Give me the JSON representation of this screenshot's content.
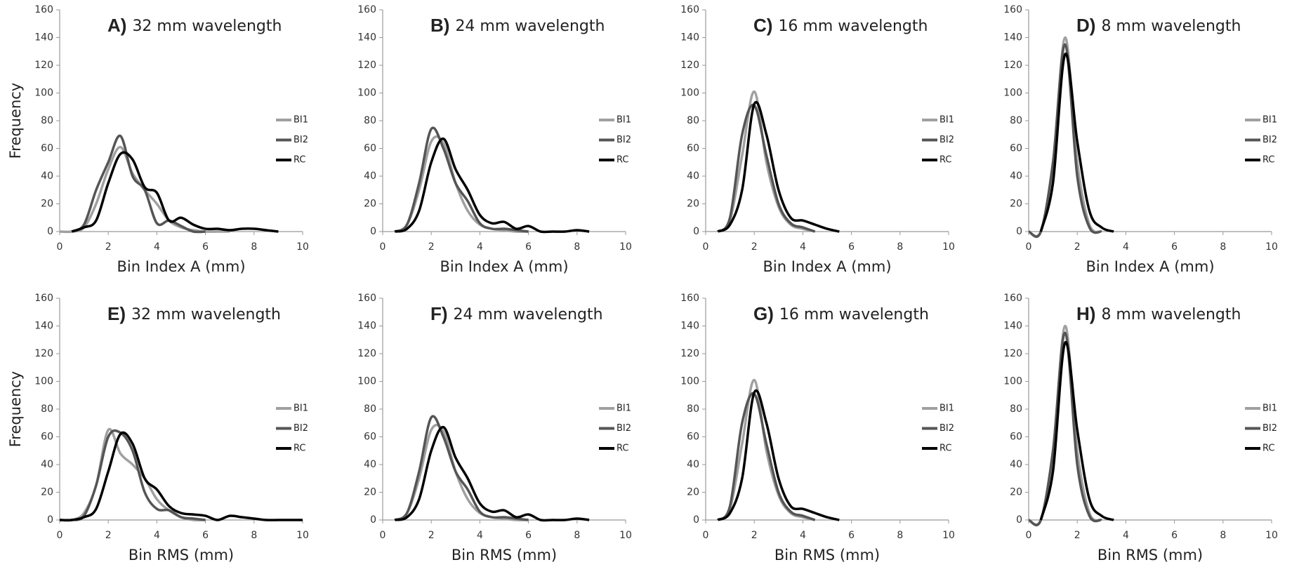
{
  "chart_data": [
    {
      "type": "line",
      "panel_label": "A)",
      "title": "32 mm wavelength",
      "y_label": "Frequency",
      "x_label": "Bin Index A (mm)",
      "x": [
        0,
        0.5,
        1,
        1.5,
        2,
        2.5,
        3,
        3.5,
        4,
        4.5,
        5,
        5.5,
        6,
        6.5,
        7,
        7.5,
        8,
        8.5,
        9,
        9.5,
        10
      ],
      "series": [
        {
          "name": "BI1",
          "color": "#a0a0a0",
          "values": [
            0,
            0,
            3,
            20,
            45,
            61,
            42,
            30,
            20,
            8,
            3,
            1,
            0,
            0,
            0,
            null,
            null,
            null,
            null,
            null,
            null
          ]
        },
        {
          "name": "BI2",
          "color": "#555555",
          "values": [
            null,
            0,
            5,
            30,
            50,
            69,
            40,
            30,
            6,
            8,
            4,
            0,
            0,
            null,
            null,
            null,
            null,
            null,
            null,
            null,
            null
          ]
        },
        {
          "name": "RC",
          "color": "#000000",
          "values": [
            null,
            0,
            3,
            8,
            35,
            56,
            52,
            32,
            28,
            8,
            10,
            5,
            2,
            2,
            1,
            2,
            2,
            1,
            0,
            null,
            null
          ]
        }
      ],
      "xlim": [
        0,
        10
      ],
      "ylim": [
        0,
        160
      ],
      "xticks": [
        0,
        2,
        4,
        6,
        8,
        10
      ],
      "yticks": [
        0,
        20,
        40,
        60,
        80,
        100,
        120,
        140,
        160
      ],
      "legend": "right"
    },
    {
      "type": "line",
      "panel_label": "B)",
      "title": "24 mm wavelength",
      "x_label": "Bin Index A (mm)",
      "x": [
        0,
        0.5,
        1,
        1.5,
        2,
        2.5,
        3,
        3.5,
        4,
        4.5,
        5,
        5.5,
        6,
        6.5,
        7,
        7.5,
        8,
        8.5,
        9,
        9.5,
        10
      ],
      "series": [
        {
          "name": "BI1",
          "color": "#a0a0a0",
          "values": [
            null,
            0,
            5,
            30,
            65,
            64,
            35,
            15,
            5,
            2,
            1,
            0,
            0,
            null,
            null,
            null,
            null,
            null,
            null,
            null,
            null
          ]
        },
        {
          "name": "BI2",
          "color": "#555555",
          "values": [
            null,
            0,
            5,
            35,
            74,
            60,
            35,
            22,
            6,
            2,
            2,
            1,
            0,
            null,
            null,
            null,
            null,
            null,
            null,
            null,
            null
          ]
        },
        {
          "name": "RC",
          "color": "#000000",
          "values": [
            null,
            0,
            2,
            15,
            50,
            67,
            45,
            30,
            12,
            6,
            7,
            2,
            4,
            0,
            0,
            0,
            1,
            0,
            null,
            null,
            null
          ]
        }
      ],
      "xlim": [
        0,
        10
      ],
      "ylim": [
        0,
        160
      ],
      "xticks": [
        0,
        2,
        4,
        6,
        8,
        10
      ],
      "yticks": [
        0,
        20,
        40,
        60,
        80,
        100,
        120,
        140,
        160
      ],
      "legend": "right"
    },
    {
      "type": "line",
      "panel_label": "C)",
      "title": "16 mm wavelength",
      "x_label": "Bin Index A (mm)",
      "x": [
        0,
        0.5,
        1,
        1.5,
        2,
        2.5,
        3,
        3.5,
        4,
        4.5,
        5,
        5.5,
        6,
        6.5,
        7,
        7.5,
        8,
        8.5,
        9,
        9.5,
        10
      ],
      "series": [
        {
          "name": "BI1",
          "color": "#a0a0a0",
          "values": [
            null,
            0,
            8,
            55,
            101,
            50,
            18,
            5,
            2,
            0,
            null,
            null,
            null,
            null,
            null,
            null,
            null,
            null,
            null,
            null,
            null
          ]
        },
        {
          "name": "BI2",
          "color": "#555555",
          "values": [
            null,
            0,
            10,
            70,
            91,
            55,
            20,
            6,
            3,
            0,
            null,
            null,
            null,
            null,
            null,
            null,
            null,
            null,
            null,
            null,
            null
          ]
        },
        {
          "name": "RC",
          "color": "#000000",
          "values": [
            null,
            0,
            5,
            30,
            92,
            70,
            30,
            10,
            8,
            5,
            2,
            0,
            null,
            null,
            null,
            null,
            null,
            null,
            null,
            null,
            null
          ]
        }
      ],
      "xlim": [
        0,
        10
      ],
      "ylim": [
        0,
        160
      ],
      "xticks": [
        0,
        2,
        4,
        6,
        8,
        10
      ],
      "yticks": [
        0,
        20,
        40,
        60,
        80,
        100,
        120,
        140,
        160
      ],
      "legend": "right"
    },
    {
      "type": "line",
      "panel_label": "D)",
      "title": "8 mm wavelength",
      "x_label": "Bin Index A (mm)",
      "x": [
        0,
        0.5,
        1,
        1.5,
        2,
        2.5,
        3,
        3.5,
        4,
        4.5,
        5,
        5.5,
        6,
        6.5,
        7,
        7.5,
        8,
        8.5,
        9,
        9.5,
        10
      ],
      "series": [
        {
          "name": "BI1",
          "color": "#a0a0a0",
          "values": [
            0,
            0,
            45,
            140,
            50,
            5,
            0,
            null,
            null,
            null,
            null,
            null,
            null,
            null,
            null,
            null,
            null,
            null,
            null,
            null,
            null
          ]
        },
        {
          "name": "BI2",
          "color": "#555555",
          "values": [
            0,
            0,
            50,
            135,
            40,
            3,
            0,
            null,
            null,
            null,
            null,
            null,
            null,
            null,
            null,
            null,
            null,
            null,
            null,
            null,
            null
          ]
        },
        {
          "name": "RC",
          "color": "#000000",
          "values": [
            null,
            0,
            35,
            128,
            65,
            15,
            3,
            0,
            null,
            null,
            null,
            null,
            null,
            null,
            null,
            null,
            null,
            null,
            null,
            null,
            null
          ]
        }
      ],
      "xlim": [
        0,
        10
      ],
      "ylim": [
        0,
        160
      ],
      "xticks": [
        0,
        2,
        4,
        6,
        8,
        10
      ],
      "yticks": [
        0,
        20,
        40,
        60,
        80,
        100,
        120,
        140,
        160
      ],
      "legend": "right"
    },
    {
      "type": "line",
      "panel_label": "E)",
      "title": "32 mm wavelength",
      "y_label": "Frequency",
      "x_label": "Bin RMS (mm)",
      "x": [
        0,
        0.5,
        1,
        1.5,
        2,
        2.5,
        3,
        3.5,
        4,
        4.5,
        5,
        5.5,
        6,
        6.5,
        7,
        7.5,
        8,
        8.5,
        9,
        9.5,
        10
      ],
      "series": [
        {
          "name": "BI1",
          "color": "#a0a0a0",
          "values": [
            0,
            0,
            5,
            25,
            65,
            48,
            40,
            30,
            15,
            7,
            2,
            0,
            0,
            null,
            null,
            null,
            null,
            null,
            null,
            null,
            null
          ]
        },
        {
          "name": "BI2",
          "color": "#555555",
          "values": [
            0,
            0,
            3,
            25,
            60,
            63,
            50,
            20,
            8,
            7,
            2,
            1,
            0,
            null,
            null,
            null,
            null,
            null,
            null,
            null,
            null
          ]
        },
        {
          "name": "RC",
          "color": "#000000",
          "values": [
            0,
            0,
            2,
            8,
            35,
            62,
            55,
            30,
            22,
            10,
            5,
            4,
            3,
            0,
            3,
            2,
            1,
            0,
            0,
            0,
            0
          ]
        }
      ],
      "xlim": [
        0,
        10
      ],
      "ylim": [
        0,
        160
      ],
      "xticks": [
        0,
        2,
        4,
        6,
        8,
        10
      ],
      "yticks": [
        0,
        20,
        40,
        60,
        80,
        100,
        120,
        140,
        160
      ],
      "legend": "right"
    },
    {
      "type": "line",
      "panel_label": "F)",
      "title": "24 mm wavelength",
      "x_label": "Bin RMS (mm)",
      "x": [
        0,
        0.5,
        1,
        1.5,
        2,
        2.5,
        3,
        3.5,
        4,
        4.5,
        5,
        5.5,
        6,
        6.5,
        7,
        7.5,
        8,
        8.5,
        9,
        9.5,
        10
      ],
      "series": [
        {
          "name": "BI1",
          "color": "#a0a0a0",
          "values": [
            null,
            0,
            5,
            30,
            65,
            64,
            35,
            15,
            5,
            2,
            1,
            0,
            0,
            null,
            null,
            null,
            null,
            null,
            null,
            null,
            null
          ]
        },
        {
          "name": "BI2",
          "color": "#555555",
          "values": [
            null,
            0,
            5,
            35,
            74,
            60,
            35,
            22,
            6,
            2,
            2,
            1,
            0,
            null,
            null,
            null,
            null,
            null,
            null,
            null,
            null
          ]
        },
        {
          "name": "RC",
          "color": "#000000",
          "values": [
            null,
            0,
            2,
            15,
            50,
            67,
            45,
            30,
            12,
            6,
            7,
            2,
            4,
            0,
            0,
            0,
            1,
            0,
            null,
            null,
            null
          ]
        }
      ],
      "xlim": [
        0,
        10
      ],
      "ylim": [
        0,
        160
      ],
      "xticks": [
        0,
        2,
        4,
        6,
        8,
        10
      ],
      "yticks": [
        0,
        20,
        40,
        60,
        80,
        100,
        120,
        140,
        160
      ],
      "legend": "right"
    },
    {
      "type": "line",
      "panel_label": "G)",
      "title": "16 mm wavelength",
      "x_label": "Bin RMS (mm)",
      "x": [
        0,
        0.5,
        1,
        1.5,
        2,
        2.5,
        3,
        3.5,
        4,
        4.5,
        5,
        5.5,
        6,
        6.5,
        7,
        7.5,
        8,
        8.5,
        9,
        9.5,
        10
      ],
      "series": [
        {
          "name": "BI1",
          "color": "#a0a0a0",
          "values": [
            null,
            0,
            8,
            55,
            101,
            50,
            18,
            5,
            2,
            0,
            null,
            null,
            null,
            null,
            null,
            null,
            null,
            null,
            null,
            null,
            null
          ]
        },
        {
          "name": "BI2",
          "color": "#555555",
          "values": [
            null,
            0,
            10,
            70,
            91,
            55,
            20,
            6,
            3,
            0,
            null,
            null,
            null,
            null,
            null,
            null,
            null,
            null,
            null,
            null,
            null
          ]
        },
        {
          "name": "RC",
          "color": "#000000",
          "values": [
            null,
            0,
            5,
            30,
            92,
            70,
            30,
            10,
            8,
            5,
            2,
            0,
            null,
            null,
            null,
            null,
            null,
            null,
            null,
            null,
            null
          ]
        }
      ],
      "xlim": [
        0,
        10
      ],
      "ylim": [
        0,
        160
      ],
      "xticks": [
        0,
        2,
        4,
        6,
        8,
        10
      ],
      "yticks": [
        0,
        20,
        40,
        60,
        80,
        100,
        120,
        140,
        160
      ],
      "legend": "right"
    },
    {
      "type": "line",
      "panel_label": "H)",
      "title": "8 mm wavelength",
      "x_label": "Bin RMS (mm)",
      "x": [
        0,
        0.5,
        1,
        1.5,
        2,
        2.5,
        3,
        3.5,
        4,
        4.5,
        5,
        5.5,
        6,
        6.5,
        7,
        7.5,
        8,
        8.5,
        9,
        9.5,
        10
      ],
      "series": [
        {
          "name": "BI1",
          "color": "#a0a0a0",
          "values": [
            0,
            0,
            45,
            140,
            50,
            5,
            0,
            null,
            null,
            null,
            null,
            null,
            null,
            null,
            null,
            null,
            null,
            null,
            null,
            null,
            null
          ]
        },
        {
          "name": "BI2",
          "color": "#555555",
          "values": [
            0,
            0,
            50,
            135,
            40,
            3,
            0,
            null,
            null,
            null,
            null,
            null,
            null,
            null,
            null,
            null,
            null,
            null,
            null,
            null,
            null
          ]
        },
        {
          "name": "RC",
          "color": "#000000",
          "values": [
            null,
            0,
            35,
            128,
            65,
            15,
            3,
            0,
            null,
            null,
            null,
            null,
            null,
            null,
            null,
            null,
            null,
            null,
            null,
            null,
            null
          ]
        }
      ],
      "xlim": [
        0,
        10
      ],
      "ylim": [
        0,
        160
      ],
      "xticks": [
        0,
        2,
        4,
        6,
        8,
        10
      ],
      "yticks": [
        0,
        20,
        40,
        60,
        80,
        100,
        120,
        140,
        160
      ],
      "legend": "right"
    }
  ]
}
